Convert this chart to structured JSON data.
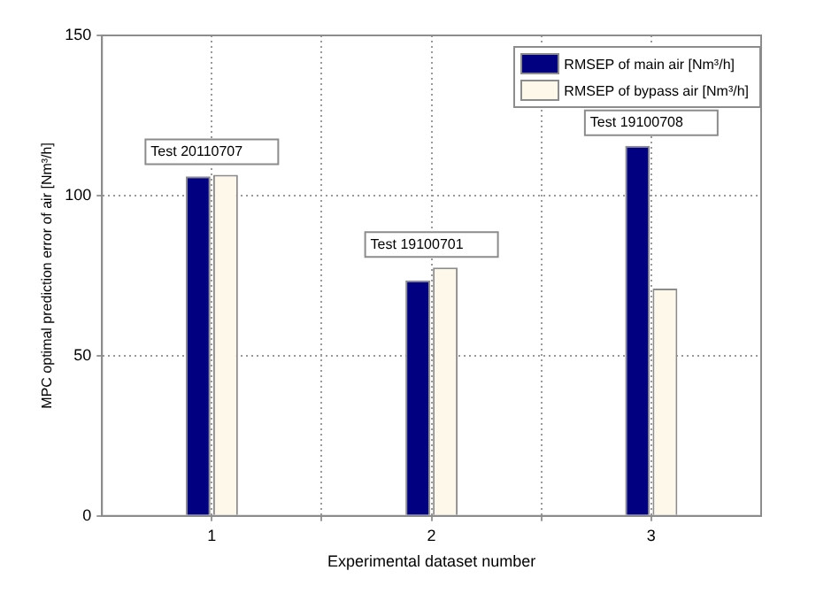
{
  "chart_data": {
    "type": "bar",
    "xlabel": "Experimental dataset number",
    "ylabel": "MPC optimal prediction error of air [Nm³/h]",
    "x": [
      1,
      2,
      3
    ],
    "xlim": [
      0.5,
      3.5
    ],
    "xticks": [
      1,
      {
        "value": 1.5,
        "label": null
      },
      2,
      {
        "value": 2.5,
        "label": null
      },
      3
    ],
    "ylim": [
      0,
      150
    ],
    "yticks": [
      0,
      50,
      100,
      150
    ],
    "series": [
      {
        "name": "RMSEP of main air [Nm³/h]",
        "color": "#000080",
        "values": [
          106,
          73.5,
          115.5
        ]
      },
      {
        "name": "RMSEP of bypass air [Nm³/h]",
        "color": "#fdf8ea",
        "values": [
          106.5,
          77.5,
          71
        ]
      }
    ],
    "annotations": [
      "Test 20110707",
      "Test 19100701",
      "Test 19100708"
    ],
    "grid": true,
    "legend": "top right"
  }
}
